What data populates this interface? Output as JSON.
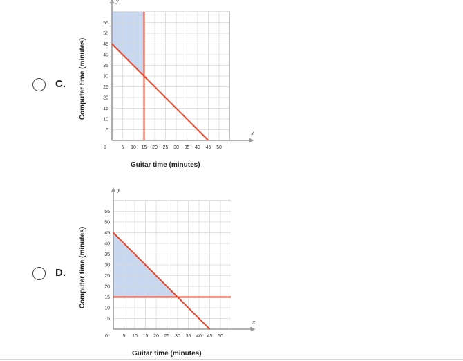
{
  "options": [
    {
      "letter": "C.",
      "chart_data": {
        "type": "line",
        "xlabel": "Guitar time (minutes)",
        "ylabel": "Computer time (minutes)",
        "x_axis_letter": "x",
        "y_axis_letter": "y",
        "origin_label": "0",
        "xlim": [
          0,
          55
        ],
        "ylim": [
          0,
          60
        ],
        "x_ticks": [
          5,
          10,
          15,
          20,
          25,
          30,
          35,
          40,
          45,
          50
        ],
        "y_ticks": [
          5,
          10,
          15,
          20,
          25,
          30,
          35,
          40,
          45,
          50,
          55
        ],
        "grid": true,
        "series": [
          {
            "kind": "segment",
            "points": [
              [
                0,
                45
              ],
              [
                45,
                0
              ]
            ]
          },
          {
            "kind": "vertical",
            "x": 15
          }
        ],
        "shaded_region": [
          [
            0,
            45
          ],
          [
            15,
            30
          ],
          [
            15,
            60
          ],
          [
            0,
            60
          ]
        ],
        "colors": {
          "line": "#e8442a",
          "shade": "#c4d5ee",
          "grid": "#d9d9d9",
          "axis": "#9a9a9a"
        }
      }
    },
    {
      "letter": "D.",
      "chart_data": {
        "type": "line",
        "xlabel": "Guitar time (minutes)",
        "ylabel": "Computer time (minutes)",
        "x_axis_letter": "x",
        "y_axis_letter": "y",
        "origin_label": "0",
        "xlim": [
          0,
          55
        ],
        "ylim": [
          0,
          60
        ],
        "x_ticks": [
          5,
          10,
          15,
          20,
          25,
          30,
          35,
          40,
          45,
          50
        ],
        "y_ticks": [
          5,
          10,
          15,
          20,
          25,
          30,
          35,
          40,
          45,
          50,
          55
        ],
        "grid": true,
        "series": [
          {
            "kind": "segment",
            "points": [
              [
                0,
                45
              ],
              [
                45,
                0
              ]
            ]
          },
          {
            "kind": "horizontal",
            "y": 15
          }
        ],
        "shaded_region": [
          [
            0,
            15
          ],
          [
            0,
            45
          ],
          [
            30,
            15
          ]
        ],
        "colors": {
          "line": "#e8442a",
          "shade": "#c4d5ee",
          "grid": "#d9d9d9",
          "axis": "#9a9a9a"
        }
      }
    }
  ]
}
